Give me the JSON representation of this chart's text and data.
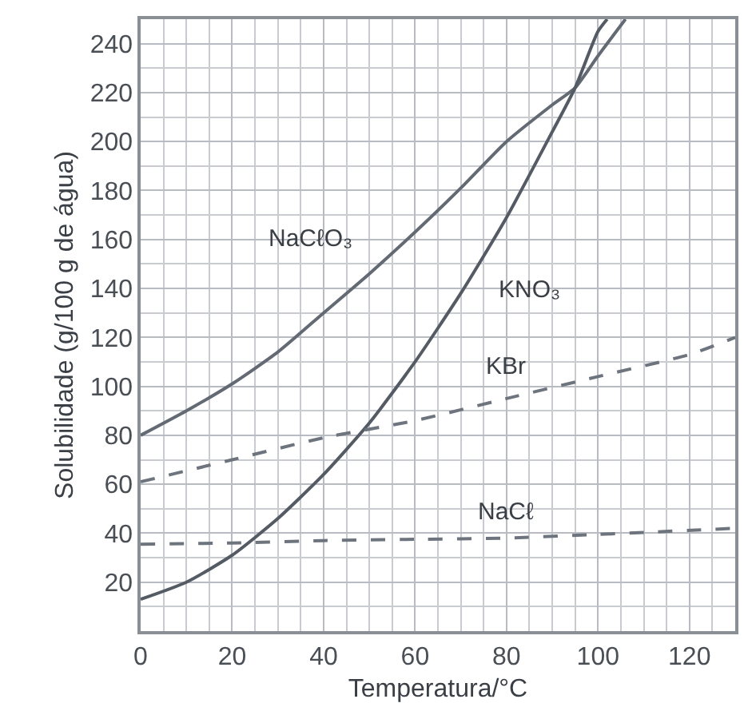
{
  "chart_data": {
    "type": "line",
    "xlabel": "Temperatura/°C",
    "ylabel": "Solubilidade (g/100 g de água)",
    "xlim": [
      0,
      130
    ],
    "ylim": [
      0,
      250
    ],
    "xticks": [
      0,
      20,
      40,
      60,
      80,
      100,
      120
    ],
    "yticks": [
      20,
      40,
      60,
      80,
      100,
      120,
      140,
      160,
      180,
      200,
      220,
      240
    ],
    "grid": true,
    "legend": false,
    "marker": "none",
    "series": [
      {
        "name": "NaCℓO₃",
        "color": "#636a74",
        "line_style": "solid",
        "x": [
          0,
          10,
          20,
          30,
          40,
          50,
          60,
          70,
          80,
          90,
          95,
          100,
          106
        ],
        "values": [
          80,
          90,
          101,
          114,
          130,
          146,
          163,
          181,
          200,
          215,
          222,
          235,
          250
        ]
      },
      {
        "name": "KNO₃",
        "color": "#555b64",
        "line_style": "solid",
        "x": [
          0,
          10,
          20,
          30,
          40,
          50,
          60,
          70,
          80,
          90,
          95,
          100,
          102
        ],
        "values": [
          13,
          20,
          31,
          46,
          64,
          85,
          110,
          138,
          169,
          204,
          222,
          245,
          250
        ]
      },
      {
        "name": "KBr",
        "color": "#6e747d",
        "line_style": "dashed",
        "x": [
          0,
          20,
          40,
          60,
          80,
          100,
          120,
          130
        ],
        "values": [
          61,
          70,
          79,
          86,
          95,
          104,
          113,
          120
        ]
      },
      {
        "name": "NaCℓ",
        "color": "#6e747d",
        "line_style": "dashed",
        "x": [
          0,
          20,
          40,
          60,
          80,
          100,
          130
        ],
        "values": [
          35.5,
          36,
          37,
          37.5,
          38,
          39.5,
          42
        ]
      }
    ]
  }
}
